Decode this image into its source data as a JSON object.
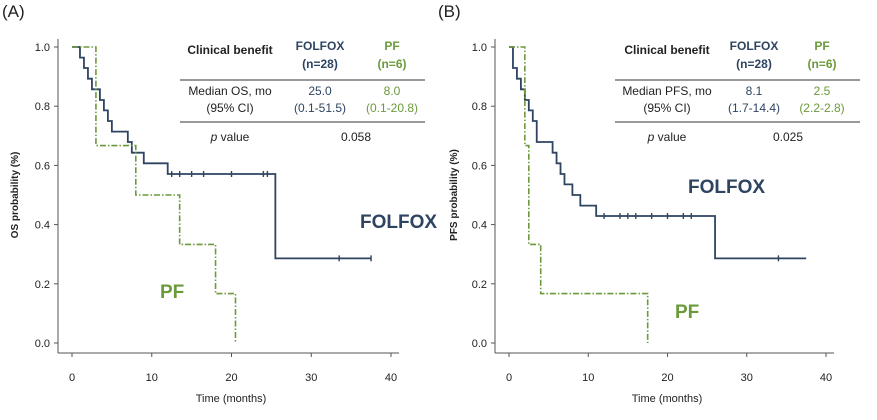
{
  "colors": {
    "folfox": "#2e4461",
    "pf": "#6b9a3a",
    "axis": "#555555",
    "text": "#222222"
  },
  "chart_data": [
    {
      "type": "line",
      "panel_label": "(A)",
      "xlabel": "Time (months)",
      "ylabel": "OS probability (%)",
      "xlim": [
        0,
        40
      ],
      "ylim": [
        0,
        1.0
      ],
      "xticks": [
        "0",
        "10",
        "20",
        "30",
        "40"
      ],
      "yticks": [
        "0.0",
        "0.2",
        "0.4",
        "0.6",
        "0.8",
        "1.0"
      ],
      "series": [
        {
          "name": "FOLFOX",
          "label": "FOLFOX",
          "style": "solid",
          "x": [
            0,
            1,
            1.5,
            2,
            2.5,
            3.5,
            4,
            4.5,
            5,
            5.5,
            6,
            7,
            7.5,
            8,
            9,
            10,
            12,
            25,
            25.5,
            37.5
          ],
          "y": [
            1.0,
            0.964,
            0.929,
            0.893,
            0.857,
            0.821,
            0.786,
            0.75,
            0.714,
            0.714,
            0.714,
            0.679,
            0.643,
            0.643,
            0.607,
            0.607,
            0.571,
            0.571,
            0.286,
            0.286
          ],
          "censor_x": [
            12.5,
            13.5,
            15,
            16.5,
            20,
            24,
            24.5,
            33.5,
            37.5
          ],
          "censor_y": [
            0.571,
            0.571,
            0.571,
            0.571,
            0.571,
            0.571,
            0.571,
            0.286,
            0.286
          ]
        },
        {
          "name": "PF",
          "label": "PF",
          "style": "dashdot",
          "x": [
            0,
            2.5,
            3,
            7.5,
            8,
            13,
            13.5,
            17.5,
            18,
            20.5
          ],
          "y": [
            1.0,
            1.0,
            0.667,
            0.667,
            0.5,
            0.5,
            0.333,
            0.333,
            0.167,
            0.0
          ]
        }
      ],
      "table": {
        "header": [
          "Clinical benefit",
          "FOLFOX",
          "PF"
        ],
        "header_sub": [
          "",
          "(n=28)",
          "(n=6)"
        ],
        "row1_label": [
          "Median OS, mo",
          "(95% CI)"
        ],
        "row1_folfox": [
          "25.0",
          "(0.1-51.5)"
        ],
        "row1_pf": [
          "8.0",
          "(0.1-20.8)"
        ],
        "row2_label_italic": "p",
        "row2_label_rest": " value",
        "row2_value": "0.058"
      }
    },
    {
      "type": "line",
      "panel_label": "(B)",
      "xlabel": "Time (months)",
      "ylabel": "PFS probability (%)",
      "xlim": [
        0,
        40
      ],
      "ylim": [
        0,
        1.0
      ],
      "xticks": [
        "0",
        "10",
        "20",
        "30",
        "40"
      ],
      "yticks": [
        "0.0",
        "0.2",
        "0.4",
        "0.6",
        "0.8",
        "1.0"
      ],
      "series": [
        {
          "name": "FOLFOX",
          "label": "FOLFOX",
          "style": "solid",
          "x": [
            0,
            0.5,
            1,
            1.5,
            2,
            2.5,
            3,
            3.5,
            5,
            5.5,
            6,
            6.5,
            7,
            8,
            9,
            11,
            26,
            37.5
          ],
          "y": [
            1.0,
            0.929,
            0.893,
            0.857,
            0.821,
            0.786,
            0.75,
            0.679,
            0.679,
            0.643,
            0.607,
            0.571,
            0.536,
            0.5,
            0.464,
            0.429,
            0.286,
            0.286
          ],
          "censor_x": [
            12,
            14,
            15,
            16,
            18,
            20,
            22,
            23,
            34
          ],
          "censor_y": [
            0.429,
            0.429,
            0.429,
            0.429,
            0.429,
            0.429,
            0.429,
            0.429,
            0.286
          ]
        },
        {
          "name": "PF",
          "label": "PF",
          "style": "dashdot",
          "x": [
            0,
            2,
            2.5,
            4,
            17.5
          ],
          "y": [
            1.0,
            0.667,
            0.333,
            0.167,
            0.0
          ]
        }
      ],
      "table": {
        "header": [
          "Clinical benefit",
          "FOLFOX",
          "PF"
        ],
        "header_sub": [
          "",
          "(n=28)",
          "(n=6)"
        ],
        "row1_label": [
          "Median PFS, mo",
          "(95% CI)"
        ],
        "row1_folfox": [
          "8.1",
          "(1.7-14.4)"
        ],
        "row1_pf": [
          "2.5",
          "(2.2-2.8)"
        ],
        "row2_label_italic": "p",
        "row2_label_rest": " value",
        "row2_value": "0.025"
      }
    }
  ]
}
